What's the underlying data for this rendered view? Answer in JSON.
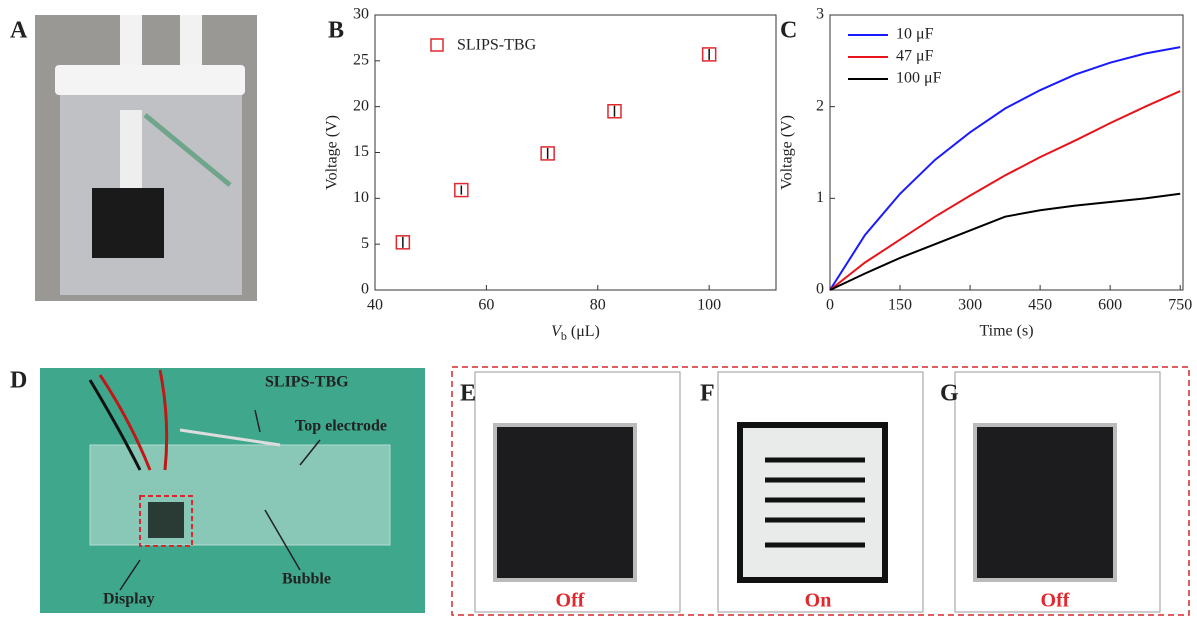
{
  "panel_labels": [
    "A",
    "B",
    "C",
    "D",
    "E",
    "F",
    "G"
  ],
  "photo_d": {
    "labels": [
      "SLIPS-TBG",
      "Top electrode",
      "Display",
      "Bubble"
    ]
  },
  "display_states": [
    "Off",
    "On",
    "Off"
  ],
  "chart_data": [
    {
      "type": "scatter",
      "series": [
        {
          "name": "SLIPS-TBG",
          "color": "#e0282e",
          "x": [
            45,
            55.5,
            71,
            83,
            100
          ],
          "values": [
            5.2,
            10.9,
            14.9,
            19.5,
            25.7
          ],
          "errors": [
            0.6,
            0.5,
            0.6,
            0.6,
            0.6
          ]
        }
      ],
      "xlim": [
        40,
        112
      ],
      "xticks": [
        40,
        60,
        80,
        100
      ],
      "ylim": [
        0,
        30
      ],
      "yticks": [
        0,
        5,
        10,
        15,
        20,
        25,
        30
      ],
      "xlabel": "V",
      "xlabel_sub": "b",
      "xlabel_unit": "(μL)",
      "ylabel": "Voltage (V)"
    },
    {
      "type": "line",
      "x": [
        0,
        75,
        150,
        225,
        300,
        375,
        450,
        525,
        600,
        675,
        750
      ],
      "series": [
        {
          "name": "10 μF",
          "color": "#1a1aff",
          "values": [
            0,
            0.6,
            1.05,
            1.42,
            1.72,
            1.98,
            2.18,
            2.35,
            2.48,
            2.58,
            2.65
          ]
        },
        {
          "name": "47 μF",
          "color": "#e8141a",
          "values": [
            0,
            0.3,
            0.55,
            0.8,
            1.03,
            1.25,
            1.45,
            1.63,
            1.82,
            2.0,
            2.17
          ]
        },
        {
          "name": "100 μF",
          "color": "#000000",
          "values": [
            0,
            0.18,
            0.35,
            0.5,
            0.65,
            0.8,
            0.87,
            0.92,
            0.96,
            1.0,
            1.05
          ]
        }
      ],
      "xlim": [
        0,
        756
      ],
      "xticks": [
        0,
        150,
        300,
        450,
        600,
        750
      ],
      "ylim": [
        0,
        3
      ],
      "yticks": [
        0,
        1,
        2,
        3
      ],
      "xlabel": "Time (s)",
      "ylabel": "Voltage (V)"
    }
  ]
}
